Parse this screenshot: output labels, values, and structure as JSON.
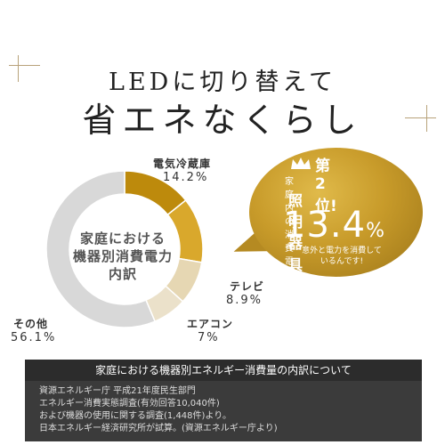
{
  "title": {
    "line1": "LEDに切り替えて",
    "line2": "省エネなくらし"
  },
  "chart_data": {
    "type": "pie",
    "center_label": [
      "家庭における",
      "機器別消費電力",
      "内訳"
    ],
    "categories": [
      "電気冷蔵庫",
      "照明器具",
      "テレビ",
      "エアコン",
      "その他"
    ],
    "values": [
      14.2,
      13.4,
      8.9,
      7,
      56.1
    ],
    "labels": [
      "電気冷蔵庫",
      "",
      "テレビ",
      "エアコン",
      "その他"
    ],
    "value_labels": [
      "14.2%",
      "",
      "8.9%",
      "7%",
      "56.1%"
    ],
    "colors": [
      "#bd8a0c",
      "#d9a82c",
      "#e6d7b3",
      "#ebe1ca",
      "#d8d8d8"
    ]
  },
  "badge": {
    "rank": "第2位!",
    "subtitle": "家庭内の消費電力",
    "category": "照明器具",
    "percent": "13.4",
    "unit": "%",
    "note_line1": "意外と電力を消費して",
    "note_line2": "いるんです!"
  },
  "footer": {
    "heading": "家庭における機器別エネルギー消費量の内訳について",
    "lines": [
      "資源エネルギー庁  平成21年度民生部門",
      "エネルギー消費実態調査(有効回答10,040件)",
      "および機器の使用に関する調査(1,448件)より。",
      "日本エネルギー経済研究所が試算。(資源エネルギー庁より)"
    ]
  },
  "colors": {
    "accent_gold": "#c89b2a",
    "footer_bg": "#3b3b3b"
  }
}
